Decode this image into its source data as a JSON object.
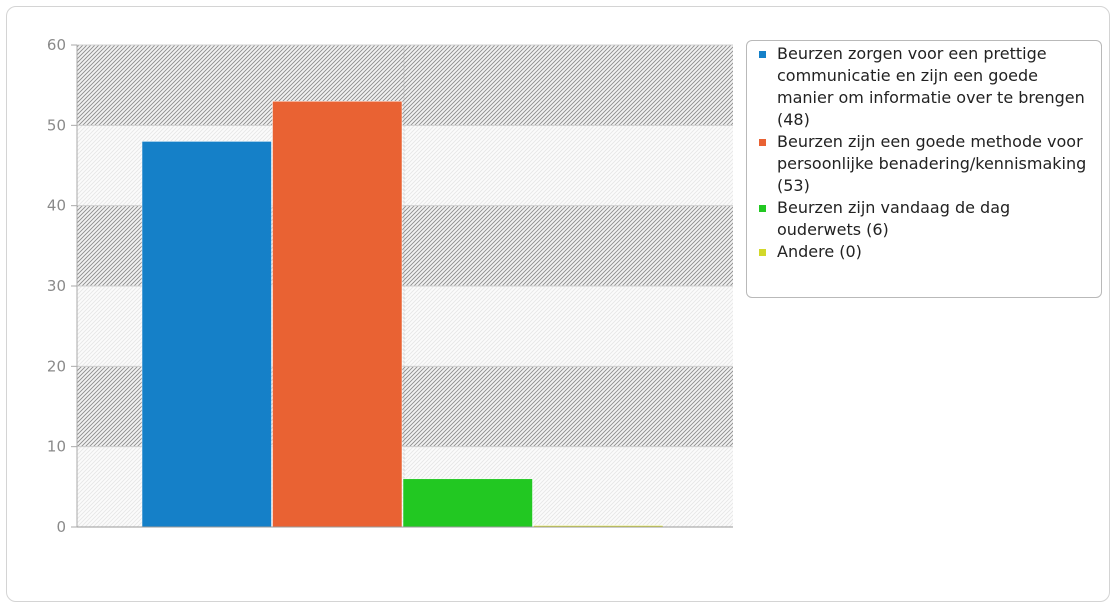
{
  "chart_data": {
    "type": "bar",
    "title": "",
    "xlabel": "",
    "ylabel": "",
    "ylim": [
      0,
      60
    ],
    "yticks": [
      0,
      10,
      20,
      30,
      40,
      50,
      60
    ],
    "grid": true,
    "legend_position": "right",
    "series": [
      {
        "name": "Beurzen zorgen voor een prettige communicatie en zijn een goede manier om informatie over te brengen (48)",
        "value": 48,
        "color": "#1580c8"
      },
      {
        "name": "Beurzen zijn een goede methode voor persoonlijke benadering/kennismaking (53)",
        "value": 53,
        "color": "#e96233"
      },
      {
        "name": "Beurzen zijn vandaag de dag ouderwets (6)",
        "value": 6,
        "color": "#22c822"
      },
      {
        "name": "Andere (0)",
        "value": 0,
        "color": "#d2d82a"
      }
    ]
  }
}
